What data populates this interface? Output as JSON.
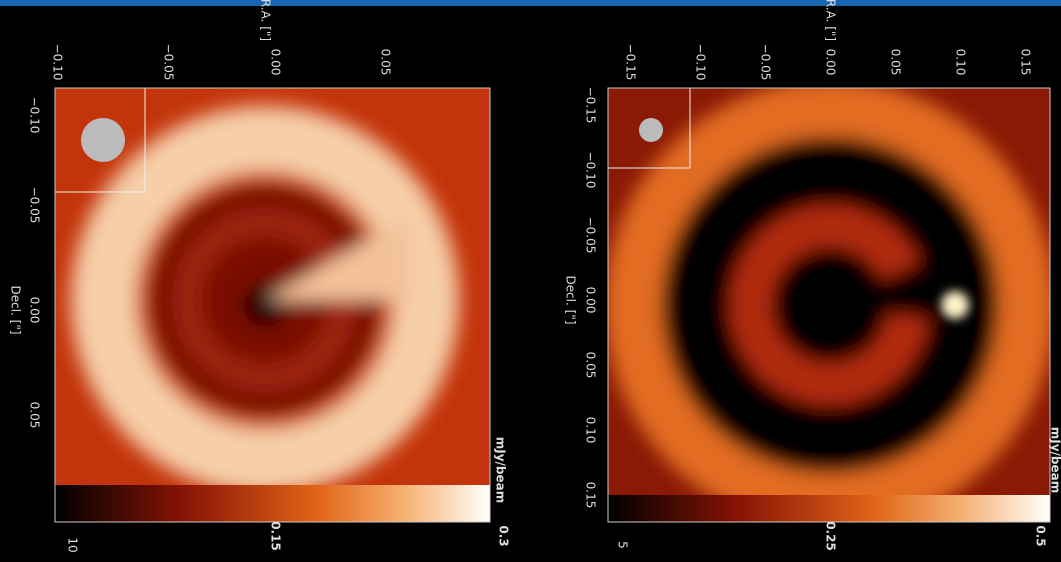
{
  "panels": [
    {
      "ra_label": "R.A. [\"]",
      "dec_label": "Decl. [\"]",
      "ra_ticks": [
        "−0.10",
        "−0.05",
        "0.00",
        "0.05"
      ],
      "dec_ticks": [
        "−0.10",
        "−0.05",
        "0.00",
        "0.05"
      ],
      "colorbar_unit": "mJy/beam",
      "colorbar_ticks": [
        "0.15",
        "0.3"
      ],
      "panel_label": "10"
    },
    {
      "ra_label": "R.A. [\"]",
      "dec_label": "Decl. [\"]",
      "ra_ticks": [
        "−0.15",
        "−0.10",
        "−0.05",
        "0.00",
        "0.05",
        "0.10",
        "0.15"
      ],
      "dec_ticks": [
        "−0.15",
        "−0.10",
        "−0.05",
        "0.00",
        "0.05",
        "0.10",
        "0.15"
      ],
      "colorbar_unit": "mJy/beam",
      "colorbar_ticks": [
        "0.25",
        "0.5"
      ],
      "panel_label": "5"
    }
  ]
}
